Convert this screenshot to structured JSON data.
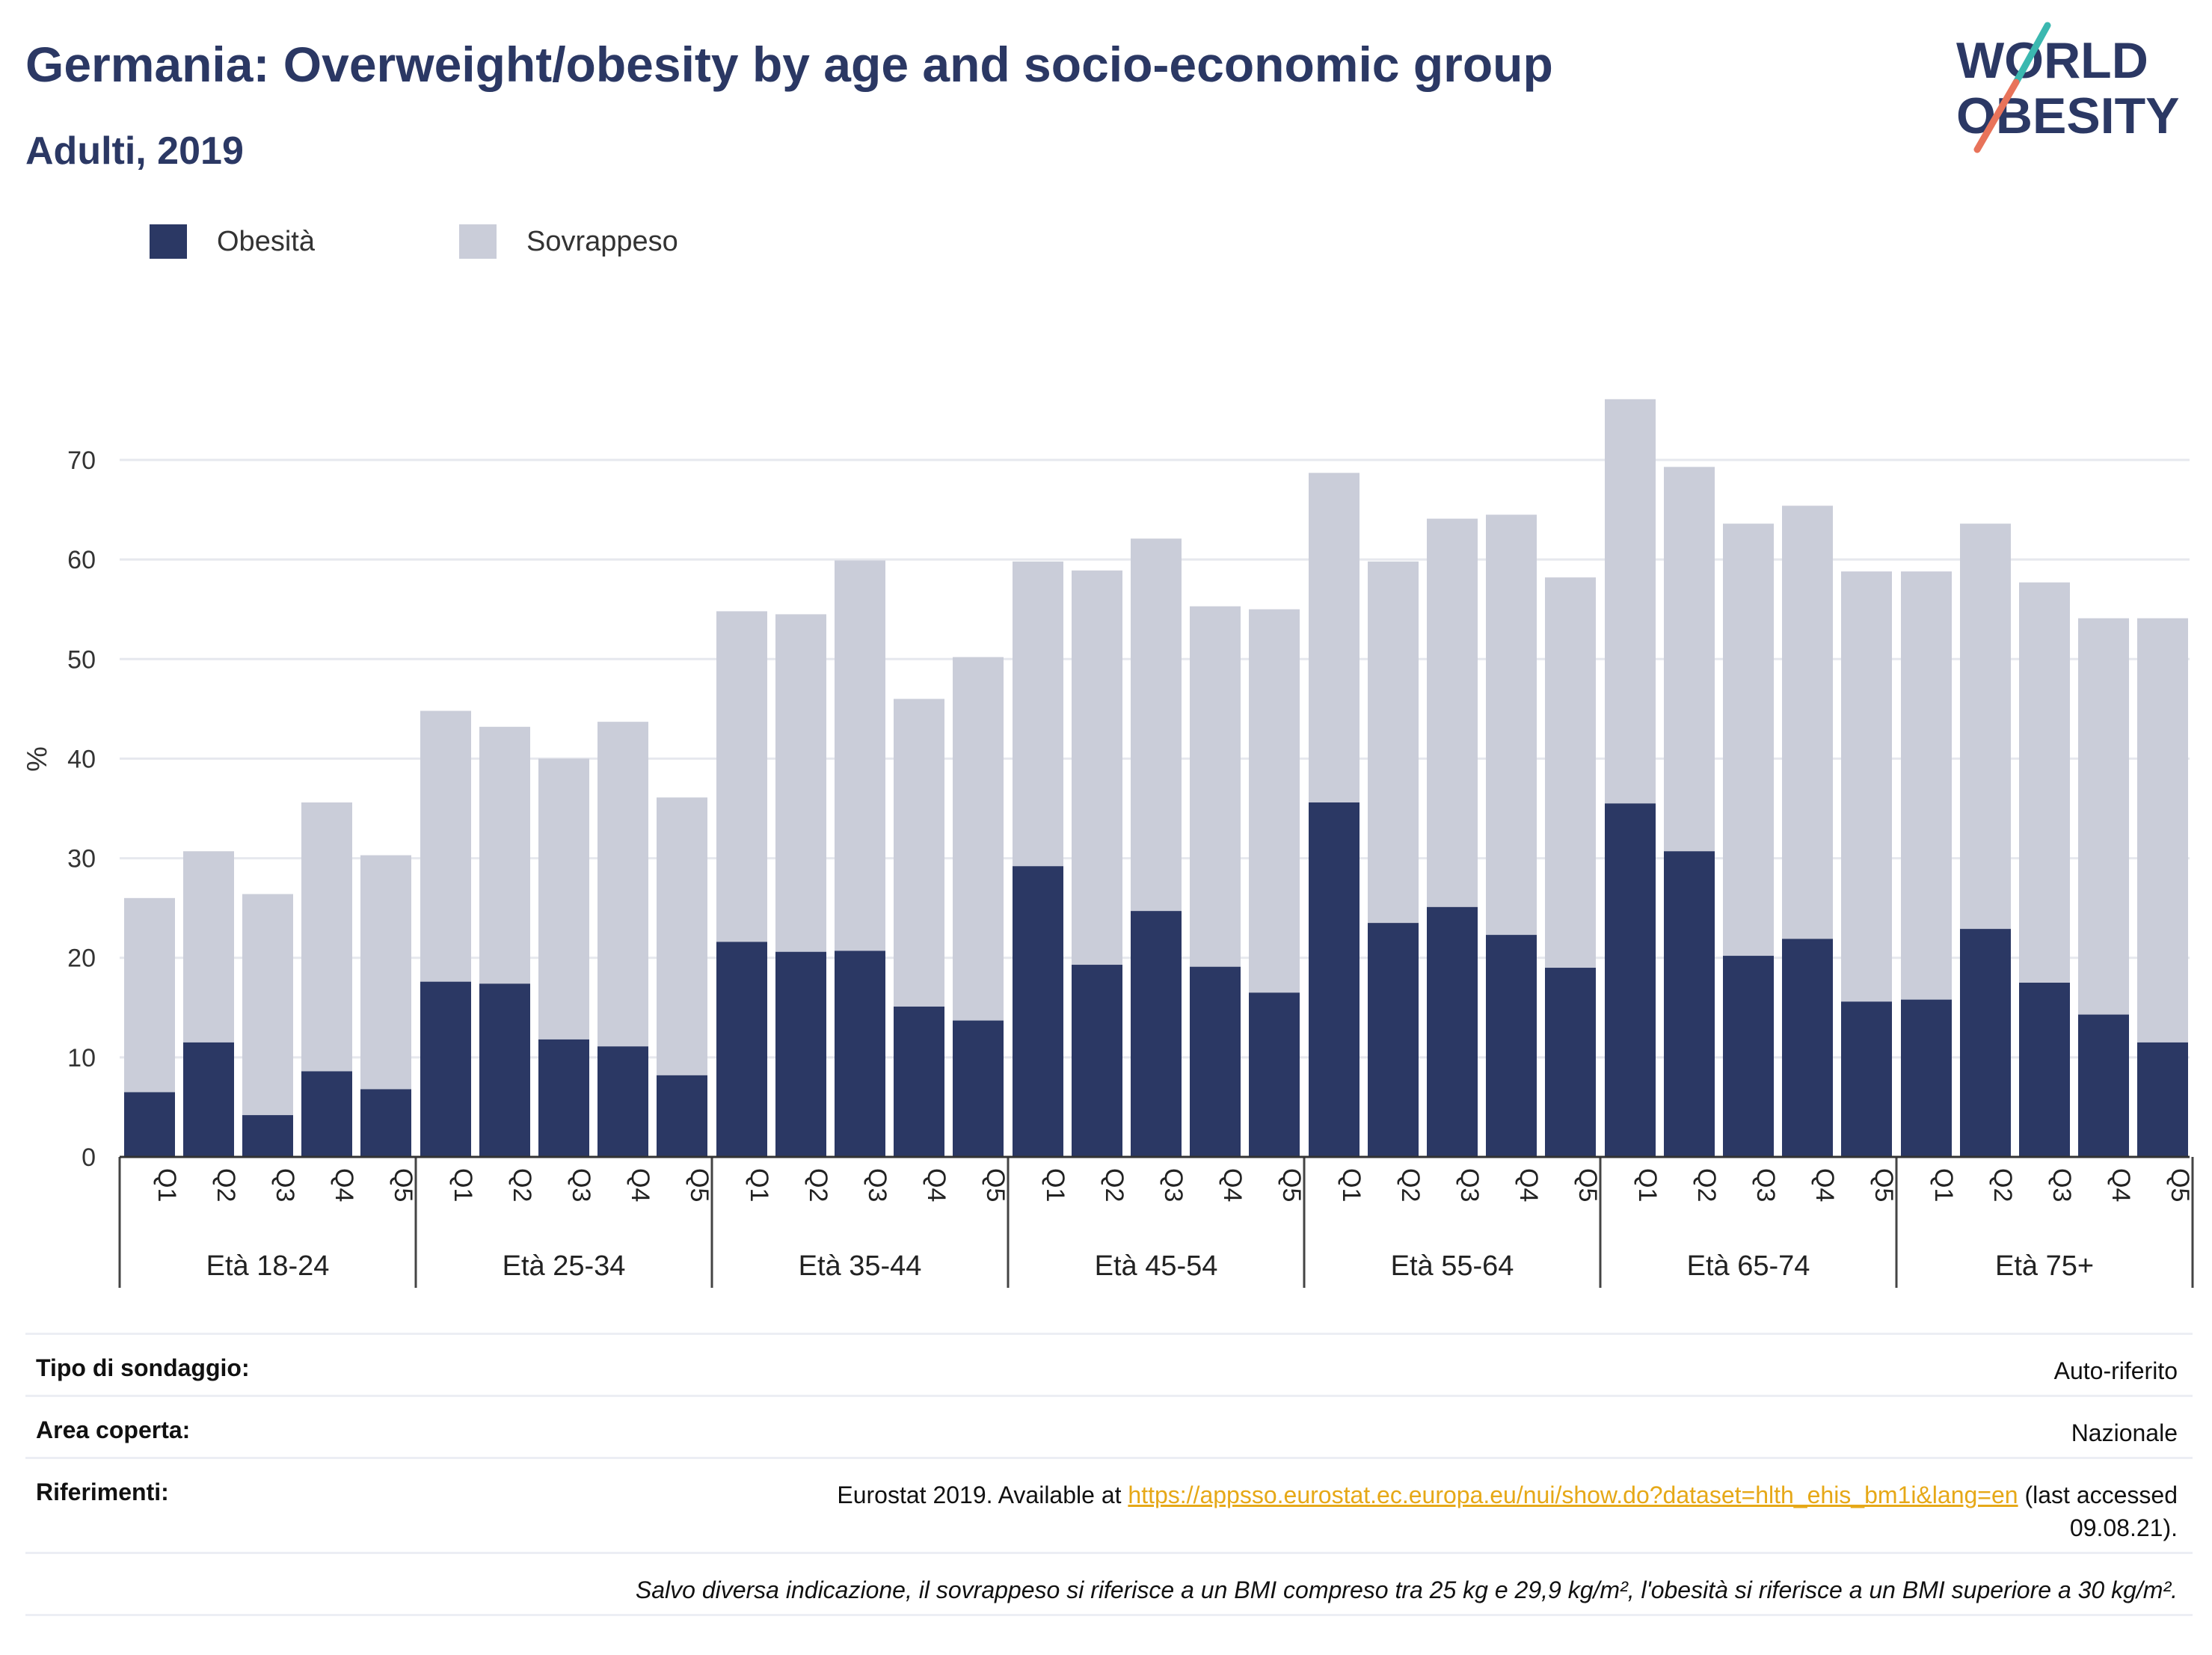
{
  "header": {
    "title": "Germania: Overweight/obesity by age and socio-economic group",
    "subtitle": "Adulti, 2019"
  },
  "logo": {
    "line1": "WORLD",
    "line2": "OBESITY",
    "icon": "world-obesity-logo"
  },
  "legend": [
    {
      "label": "Obesità",
      "color": "#2b3864"
    },
    {
      "label": "Sovrappeso",
      "color": "#cacdd9"
    }
  ],
  "chart_data": {
    "type": "bar",
    "stacked": true,
    "ylabel": "%",
    "ylim": [
      0,
      80
    ],
    "yticks": [
      0,
      10,
      20,
      30,
      40,
      50,
      60,
      70
    ],
    "grid": true,
    "legend_position": "top-left",
    "groups": [
      "Età 18-24",
      "Età 25-34",
      "Età 35-44",
      "Età 45-54",
      "Età 55-64",
      "Età 65-74",
      "Età 75+"
    ],
    "categories": [
      "Q1",
      "Q2",
      "Q3",
      "Q4",
      "Q5"
    ],
    "series": [
      {
        "name": "Obesità",
        "color": "#2b3864",
        "values": [
          [
            6.5,
            11.5,
            4.2,
            8.6,
            6.8
          ],
          [
            17.6,
            17.4,
            11.8,
            11.1,
            8.2
          ],
          [
            21.6,
            20.6,
            20.7,
            15.1,
            13.7
          ],
          [
            29.2,
            19.3,
            24.7,
            19.1,
            16.5
          ],
          [
            35.6,
            23.5,
            25.1,
            22.3,
            19.0
          ],
          [
            35.5,
            30.7,
            20.2,
            21.9,
            15.6
          ],
          [
            15.8,
            22.9,
            17.5,
            14.3,
            11.5
          ]
        ]
      },
      {
        "name": "Sovrappeso",
        "color": "#cacdd9",
        "values": [
          [
            19.5,
            19.2,
            22.2,
            27.0,
            23.5
          ],
          [
            27.2,
            25.8,
            28.2,
            32.6,
            27.9
          ],
          [
            33.2,
            33.9,
            39.2,
            30.9,
            36.5
          ],
          [
            30.6,
            39.6,
            37.4,
            36.2,
            38.5
          ],
          [
            33.1,
            36.3,
            39.0,
            42.2,
            39.2
          ],
          [
            40.6,
            38.6,
            43.4,
            43.5,
            43.2
          ],
          [
            43.0,
            40.7,
            40.2,
            39.8,
            42.6
          ]
        ]
      }
    ]
  },
  "info": {
    "survey_label": "Tipo di sondaggio:",
    "survey_value": "Auto-riferito",
    "area_label": "Area coperta:",
    "area_value": "Nazionale",
    "refs_label": "Riferimenti:",
    "refs_prefix": "Eurostat 2019. Available at ",
    "refs_link": "https://appsso.eurostat.ec.europa.eu/nui/show.do?dataset=hlth_ehis_bm1i&lang=en",
    "refs_suffix": " (last accessed",
    "refs_date": "09.08.21).",
    "note": "Salvo diversa indicazione, il sovrappeso si riferisce a un BMI compreso tra 25 kg e 29,9 kg/m², l'obesità si riferisce a un BMI superiore a 30 kg/m²."
  }
}
